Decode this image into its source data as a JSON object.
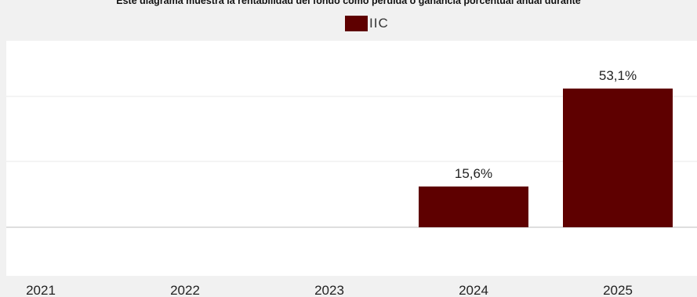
{
  "chart_data": {
    "type": "bar",
    "title": "Este diagrama muestra la rentabilidad del fondo como pérdida o ganancia porcentual anual durante",
    "categories": [
      "2021",
      "2022",
      "2023",
      "2024",
      "2025"
    ],
    "series": [
      {
        "name": "IIC",
        "values": [
          null,
          null,
          null,
          15.6,
          53.1
        ],
        "value_labels": [
          "",
          "",
          "",
          "15,6%",
          "53,1%"
        ]
      }
    ],
    "grid": true,
    "legend_position": "top-center",
    "colors": {
      "bar": "#5e0000",
      "plot_background": "#ffffff",
      "page_background": "#f1f1f1",
      "gridline": "#f1f1f1",
      "zero_line": "#bdbdbd"
    }
  }
}
